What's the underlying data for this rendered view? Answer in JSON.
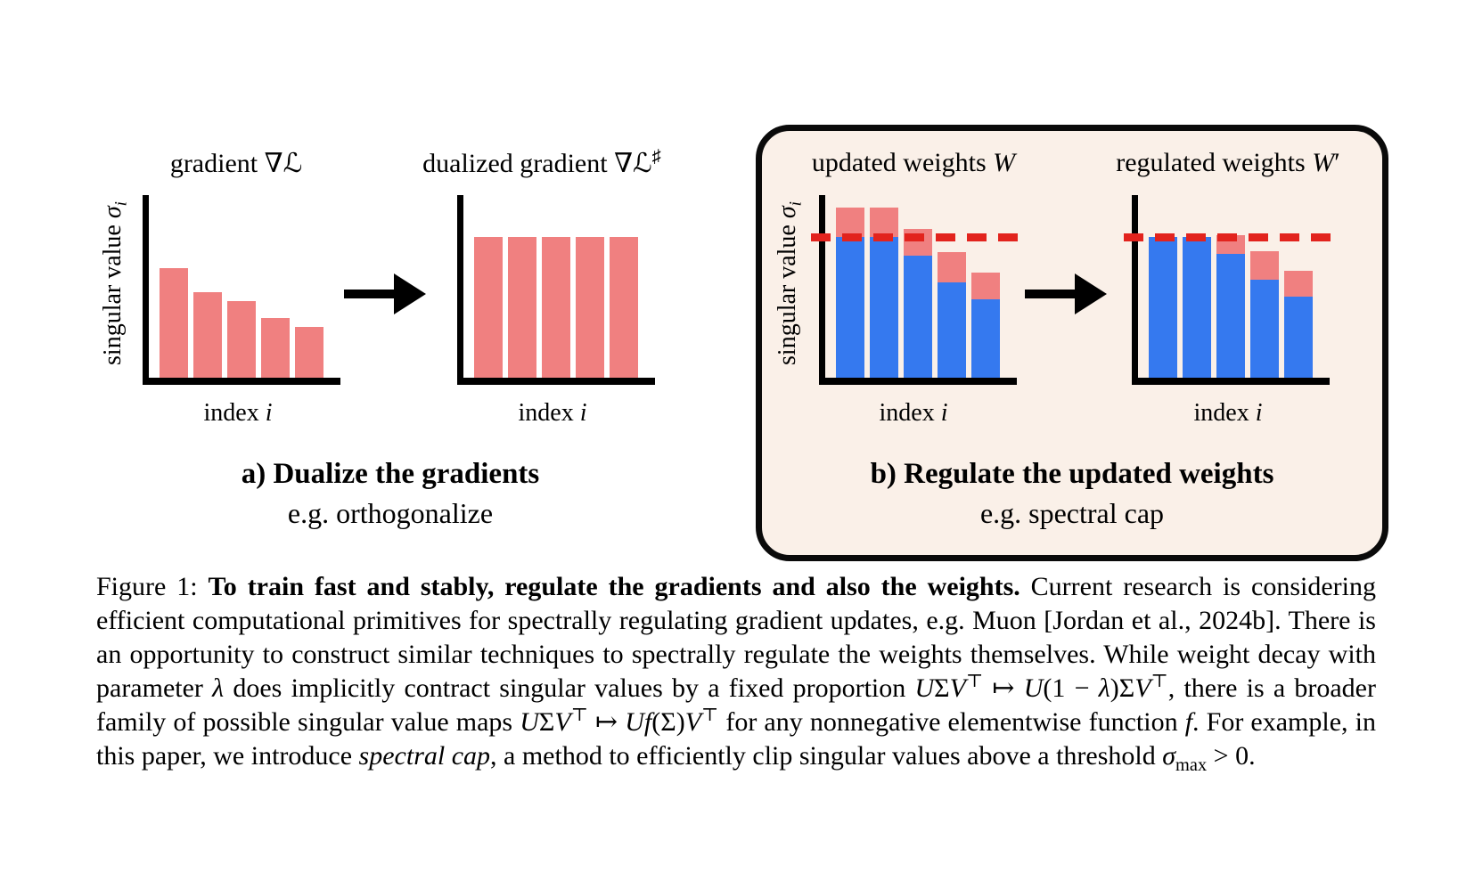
{
  "colors": {
    "salmon": "#f08080",
    "blue": "#3579ef",
    "threshold_red": "#e2231d",
    "panel_bg": "#faf0e8",
    "panel_border": "#0a0a0a",
    "axis": "#000000"
  },
  "charts": {
    "gradient": {
      "title": [
        {
          "t": "gradient "
        },
        {
          "t": "∇"
        },
        {
          "t": "ℒ",
          "s": "scr"
        }
      ],
      "ylabel": [
        {
          "t": "singular value "
        },
        {
          "t": "σ",
          "s": "i"
        },
        {
          "t": "i",
          "s": "subi"
        }
      ],
      "xlabel": [
        {
          "t": "index "
        },
        {
          "t": "i",
          "s": "i"
        }
      ],
      "bars": [
        {
          "total": 0.6
        },
        {
          "total": 0.47
        },
        {
          "total": 0.42
        },
        {
          "total": 0.325
        },
        {
          "total": 0.28
        }
      ]
    },
    "dualized": {
      "title": [
        {
          "t": "dualized gradient "
        },
        {
          "t": "∇"
        },
        {
          "t": "ℒ",
          "s": "scr"
        },
        {
          "t": "♯",
          "s": "sup"
        }
      ],
      "xlabel": [
        {
          "t": "index "
        },
        {
          "t": "i",
          "s": "i"
        }
      ],
      "bars": [
        {
          "total": 0.77
        },
        {
          "total": 0.77
        },
        {
          "total": 0.77
        },
        {
          "total": 0.77
        },
        {
          "total": 0.77
        }
      ]
    },
    "updated": {
      "title": [
        {
          "t": "updated weights "
        },
        {
          "t": "W",
          "s": "i"
        }
      ],
      "ylabel": [
        {
          "t": "singular value "
        },
        {
          "t": "σ",
          "s": "i"
        },
        {
          "t": "i",
          "s": "subi"
        }
      ],
      "xlabel": [
        {
          "t": "index "
        },
        {
          "t": "i",
          "s": "i"
        }
      ],
      "threshold": 0.77,
      "bars": [
        {
          "blue": 0.77,
          "total": 0.93
        },
        {
          "blue": 0.77,
          "total": 0.93
        },
        {
          "blue": 0.67,
          "total": 0.815
        },
        {
          "blue": 0.52,
          "total": 0.69
        },
        {
          "blue": 0.43,
          "total": 0.575
        }
      ]
    },
    "regulated": {
      "title": [
        {
          "t": "regulated weights "
        },
        {
          "t": "W",
          "s": "i"
        },
        {
          "t": "′"
        }
      ],
      "xlabel": [
        {
          "t": "index "
        },
        {
          "t": "i",
          "s": "i"
        }
      ],
      "threshold": 0.77,
      "bars": [
        {
          "blue": 0.77,
          "total": 0.77
        },
        {
          "blue": 0.77,
          "total": 0.77
        },
        {
          "blue": 0.68,
          "total": 0.78
        },
        {
          "blue": 0.535,
          "total": 0.695
        },
        {
          "blue": 0.445,
          "total": 0.585
        }
      ]
    }
  },
  "panel_a": {
    "label_bold": "a) Dualize the gradients",
    "label_sub": "e.g. orthogonalize"
  },
  "panel_b": {
    "label_bold": "b) Regulate the updated weights",
    "label_sub": "e.g. spectral cap"
  },
  "caption": {
    "segments": [
      {
        "t": "Figure 1: "
      },
      {
        "t": "To train fast and stably, regulate the gradients and also the weights.",
        "s": "b"
      },
      {
        "t": " Current research is considering efficient computational primitives for spectrally regulating gradient updates, e.g. Muon [Jordan et al., 2024b]. There is an opportunity to construct similar techniques to spectrally regulate the weights themselves. While weight decay with parameter "
      },
      {
        "t": "λ",
        "s": "i"
      },
      {
        "t": " does implicitly contract singular values by a fixed proportion "
      },
      {
        "t": "U",
        "s": "i"
      },
      {
        "t": "Σ"
      },
      {
        "t": "V",
        "s": "i"
      },
      {
        "t": "⊤",
        "s": "sup"
      },
      {
        "t": " ↦ "
      },
      {
        "t": "U",
        "s": "i"
      },
      {
        "t": "(1 − "
      },
      {
        "t": "λ",
        "s": "i"
      },
      {
        "t": ")Σ"
      },
      {
        "t": "V",
        "s": "i"
      },
      {
        "t": "⊤",
        "s": "sup"
      },
      {
        "t": ", there is a broader family of possible singular value maps "
      },
      {
        "t": "U",
        "s": "i"
      },
      {
        "t": "Σ"
      },
      {
        "t": "V",
        "s": "i"
      },
      {
        "t": "⊤",
        "s": "sup"
      },
      {
        "t": " ↦ "
      },
      {
        "t": "U",
        "s": "i"
      },
      {
        "t": "f",
        "s": "i"
      },
      {
        "t": "(Σ)"
      },
      {
        "t": "V",
        "s": "i"
      },
      {
        "t": "⊤",
        "s": "sup"
      },
      {
        "t": " for any nonnegative elementwise function "
      },
      {
        "t": "f",
        "s": "i"
      },
      {
        "t": ". For example, in this paper, we introduce "
      },
      {
        "t": "spectral cap",
        "s": "i"
      },
      {
        "t": ", a method to efficiently clip singular values above a threshold "
      },
      {
        "t": "σ",
        "s": "i"
      },
      {
        "t": "max",
        "s": "sub"
      },
      {
        "t": " > 0."
      }
    ]
  }
}
